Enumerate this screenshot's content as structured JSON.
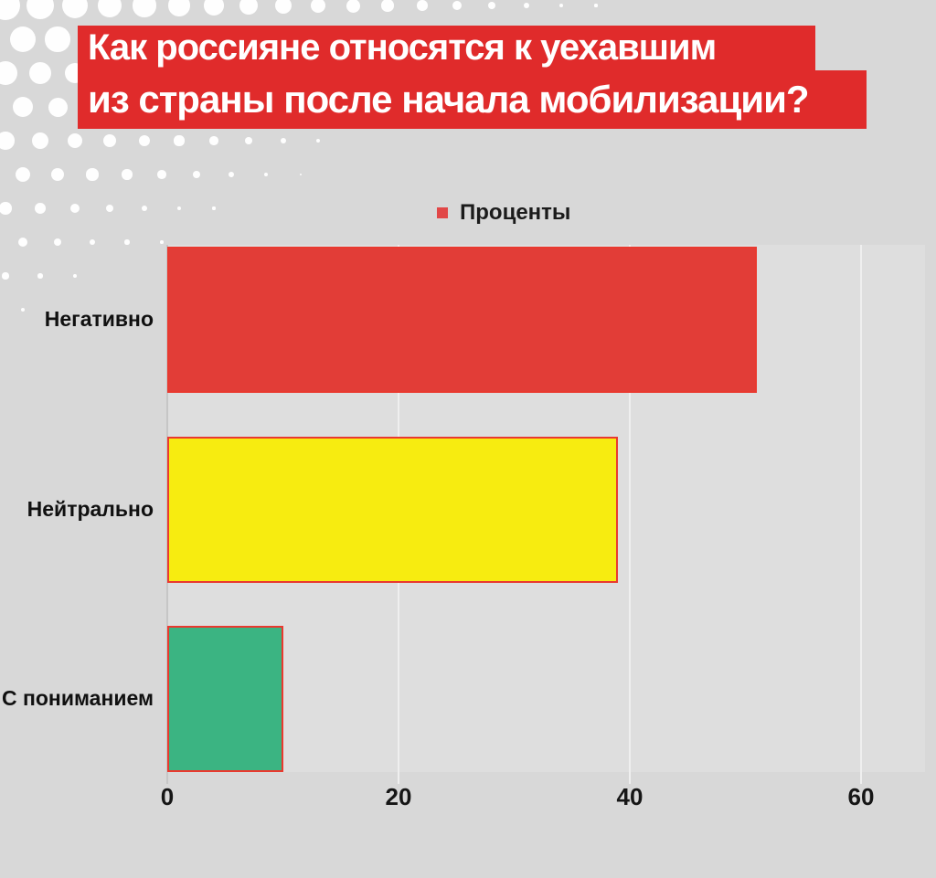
{
  "title": {
    "line1": "Как россияне относятся к уехавшим",
    "line2": "из страны после начала мобилизации?"
  },
  "legend": {
    "label": "Проценты",
    "marker_color": "#e14747"
  },
  "chart_data": {
    "type": "bar",
    "orientation": "horizontal",
    "title": "Как россияне относятся к уехавшим из страны после начала мобилизации?",
    "categories": [
      "Негативно",
      "Нейтрально",
      "С пониманием"
    ],
    "series": [
      {
        "name": "Проценты",
        "values": [
          51,
          39,
          10
        ]
      }
    ],
    "xlabel": "",
    "ylabel": "",
    "xlim": [
      0,
      60
    ],
    "x_ticks": [
      0,
      20,
      40,
      60
    ],
    "grid": true,
    "legend_position": "top",
    "bar_colors": [
      "#e23d37",
      "#f7ec10",
      "#3bb482"
    ],
    "bar_border_color": "#e9392f"
  },
  "colors": {
    "page_bg": "#d8d8d8",
    "plot_bg": "#dedede",
    "title_bg": "#e02b2b",
    "title_text": "#ffffff",
    "grid_line": "#efefef",
    "axis_line": "#c6c6c6",
    "text": "#161616",
    "dot": "#ffffff"
  }
}
